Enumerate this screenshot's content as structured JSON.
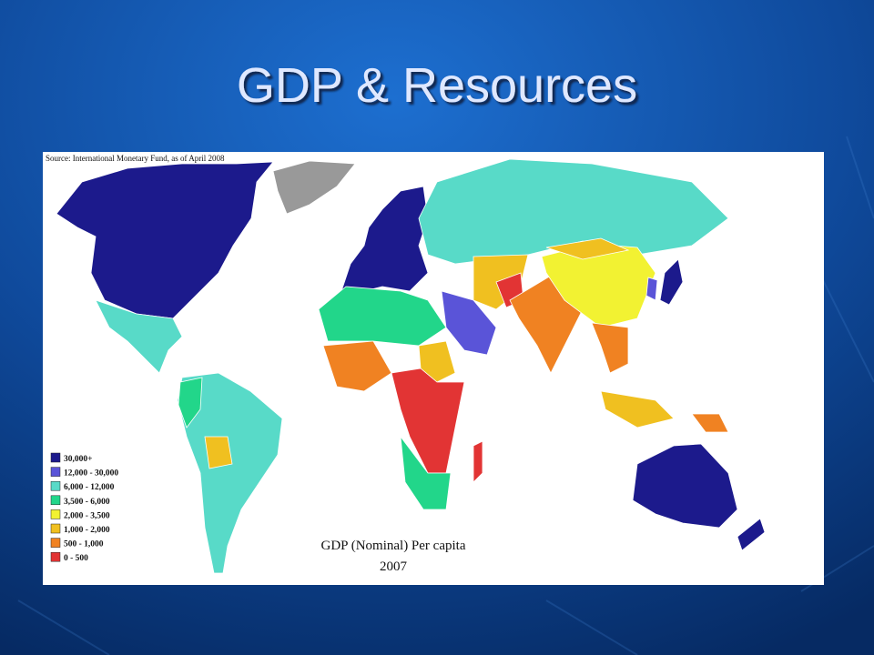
{
  "title": "GDP & Resources",
  "map": {
    "source": "Source: International Monetary Fund, as of April 2008",
    "caption": "GDP (Nominal) Per capita",
    "year": "2007",
    "legend": [
      {
        "label": "30,000+",
        "color": "#1c1a8c"
      },
      {
        "label": "12,000 - 30,000",
        "color": "#5a54d8"
      },
      {
        "label": "6,000 - 12,000",
        "color": "#58dac8"
      },
      {
        "label": "3,500 - 6,000",
        "color": "#22d68a"
      },
      {
        "label": "2,000 - 3,500",
        "color": "#f2f232"
      },
      {
        "label": "1,000 - 2,000",
        "color": "#f0c020"
      },
      {
        "label": "500 - 1,000",
        "color": "#f08222"
      },
      {
        "label": "0 - 500",
        "color": "#e23434"
      }
    ]
  }
}
